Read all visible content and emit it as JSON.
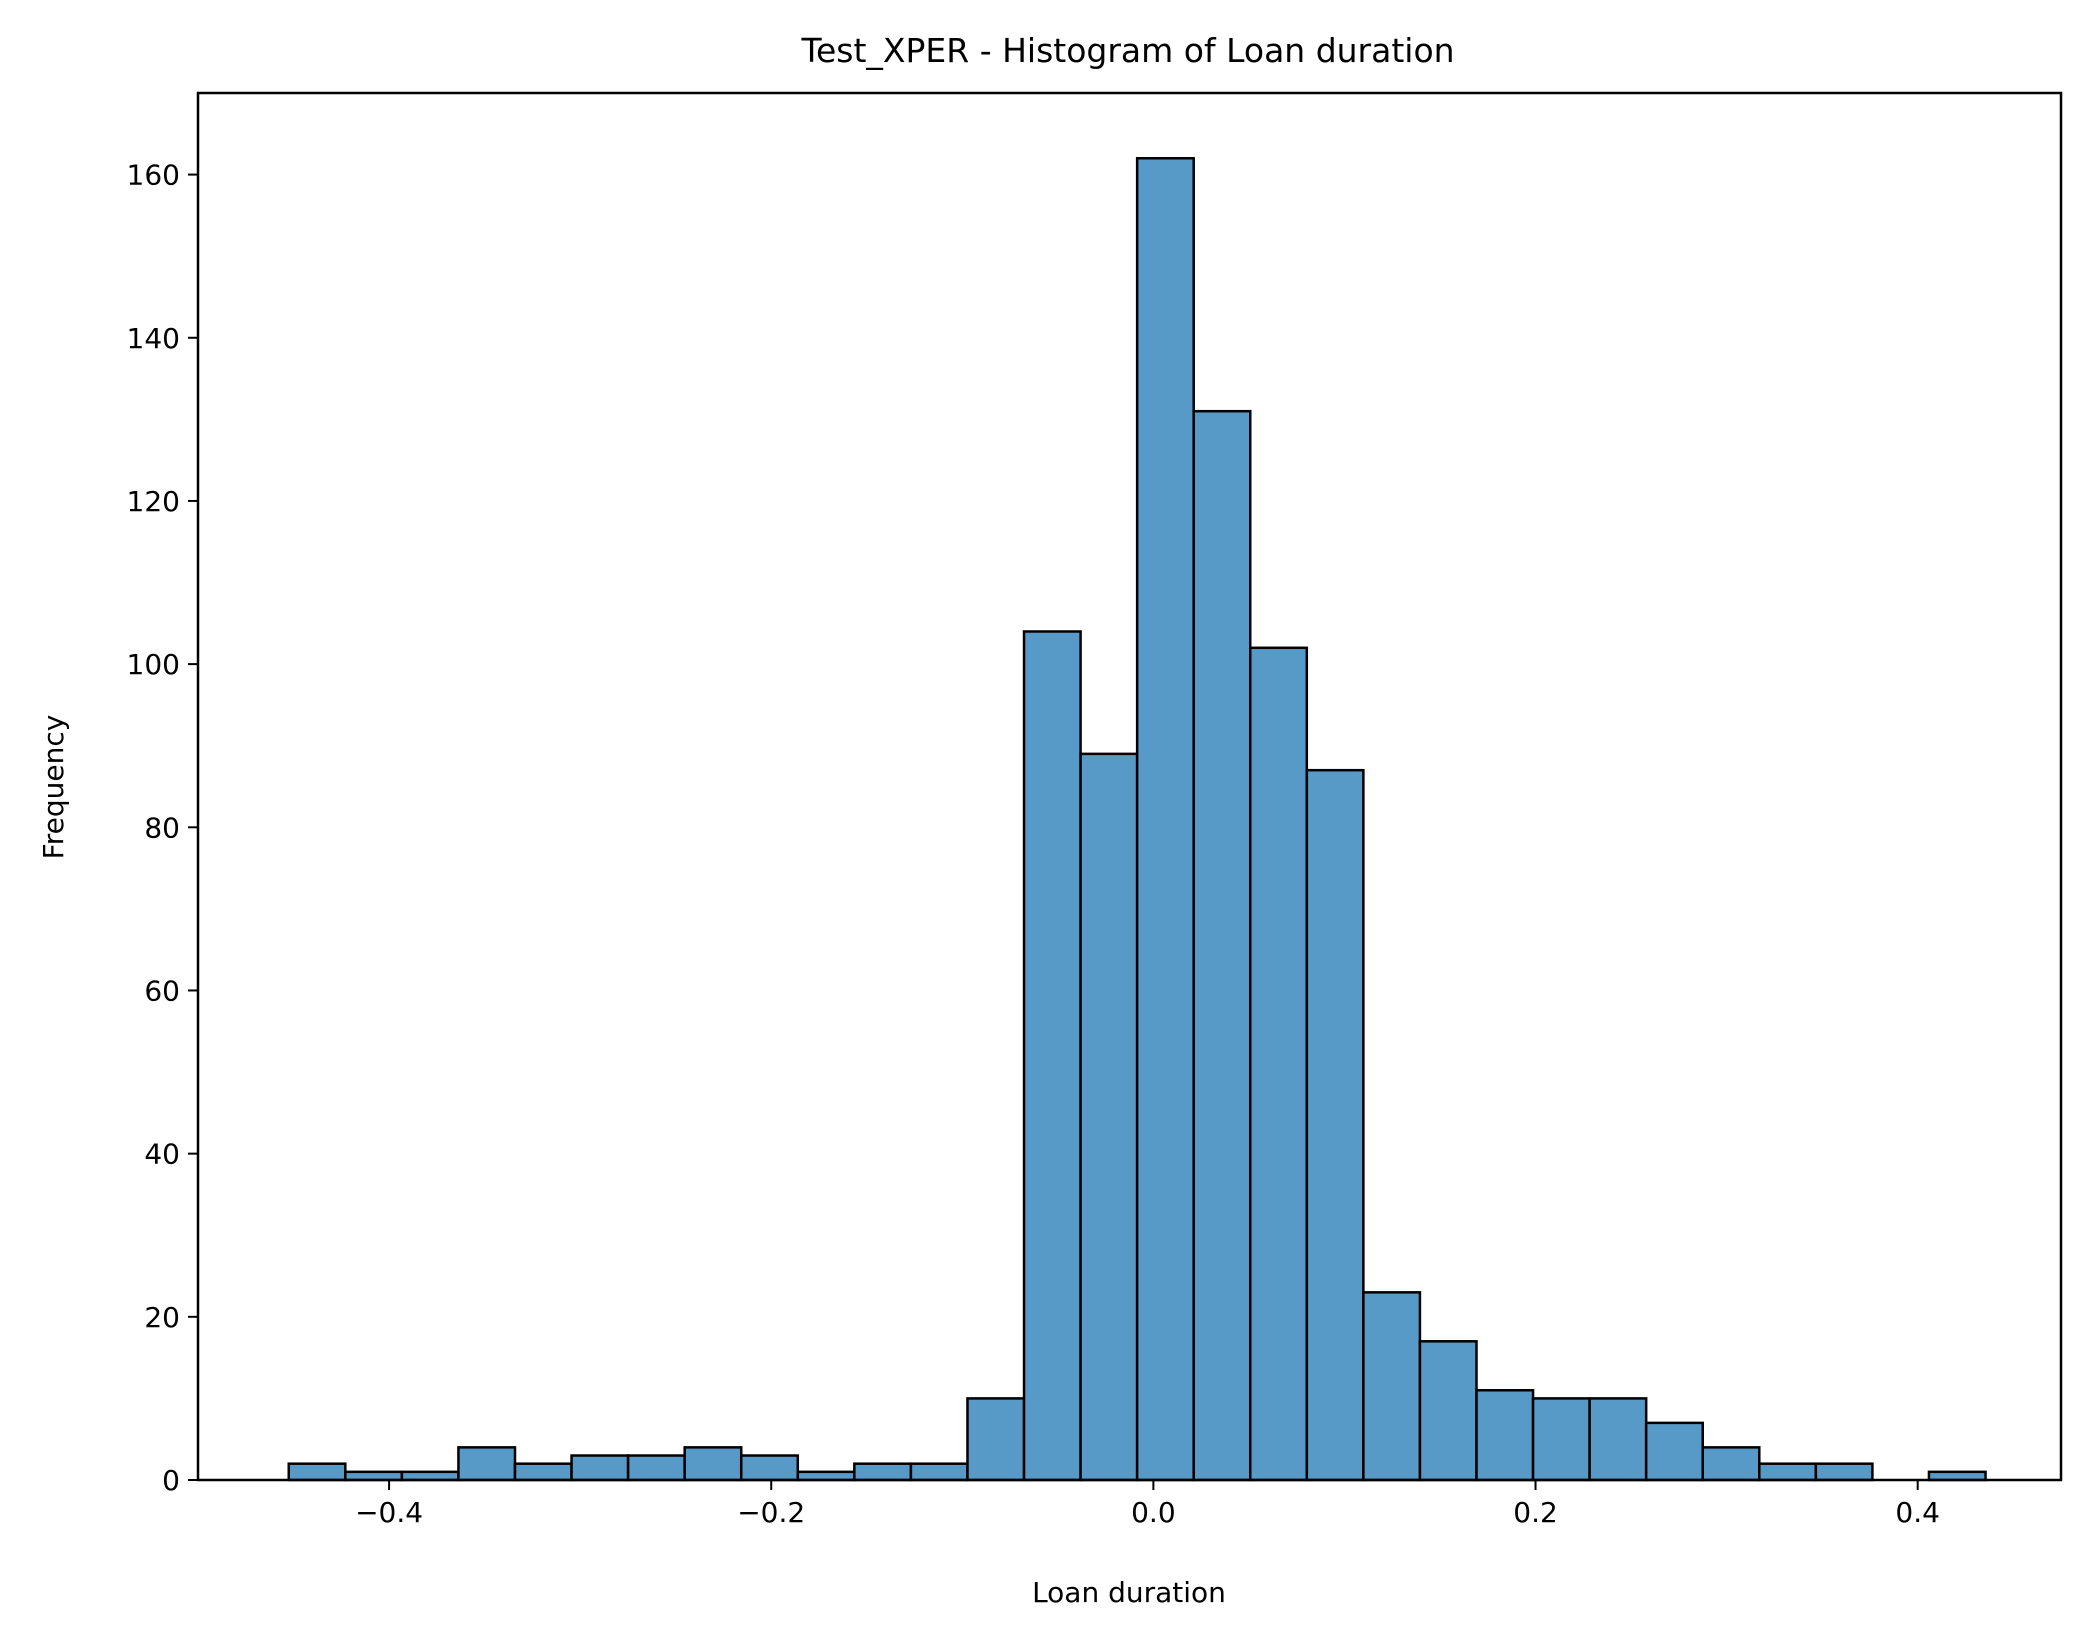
{
  "chart_data": {
    "type": "bar",
    "title": "Test_XPER - Histogram of Loan duration",
    "xlabel": "Loan duration",
    "ylabel": "Frequency",
    "bar_color": "#5799c7",
    "edge_color": "#000000",
    "xlim": [
      -0.5,
      0.475
    ],
    "ylim": [
      0,
      170
    ],
    "grid": false,
    "legend": "none",
    "bin_start": -0.4525,
    "bin_width": 0.0296,
    "values": [
      2,
      1,
      1,
      4,
      2,
      3,
      3,
      4,
      3,
      1,
      2,
      2,
      10,
      104,
      89,
      162,
      131,
      102,
      87,
      23,
      17,
      11,
      10,
      10,
      7,
      4,
      2,
      2,
      0,
      1
    ],
    "x_ticks": [
      {
        "value": -0.4,
        "label": "−0.4"
      },
      {
        "value": -0.2,
        "label": "−0.2"
      },
      {
        "value": 0.0,
        "label": "0.0"
      },
      {
        "value": 0.2,
        "label": "0.2"
      },
      {
        "value": 0.4,
        "label": "0.4"
      }
    ],
    "y_ticks": [
      {
        "value": 0,
        "label": "0"
      },
      {
        "value": 20,
        "label": "20"
      },
      {
        "value": 40,
        "label": "40"
      },
      {
        "value": 60,
        "label": "60"
      },
      {
        "value": 80,
        "label": "80"
      },
      {
        "value": 100,
        "label": "100"
      },
      {
        "value": 120,
        "label": "120"
      },
      {
        "value": 140,
        "label": "140"
      },
      {
        "value": 160,
        "label": "160"
      }
    ]
  }
}
